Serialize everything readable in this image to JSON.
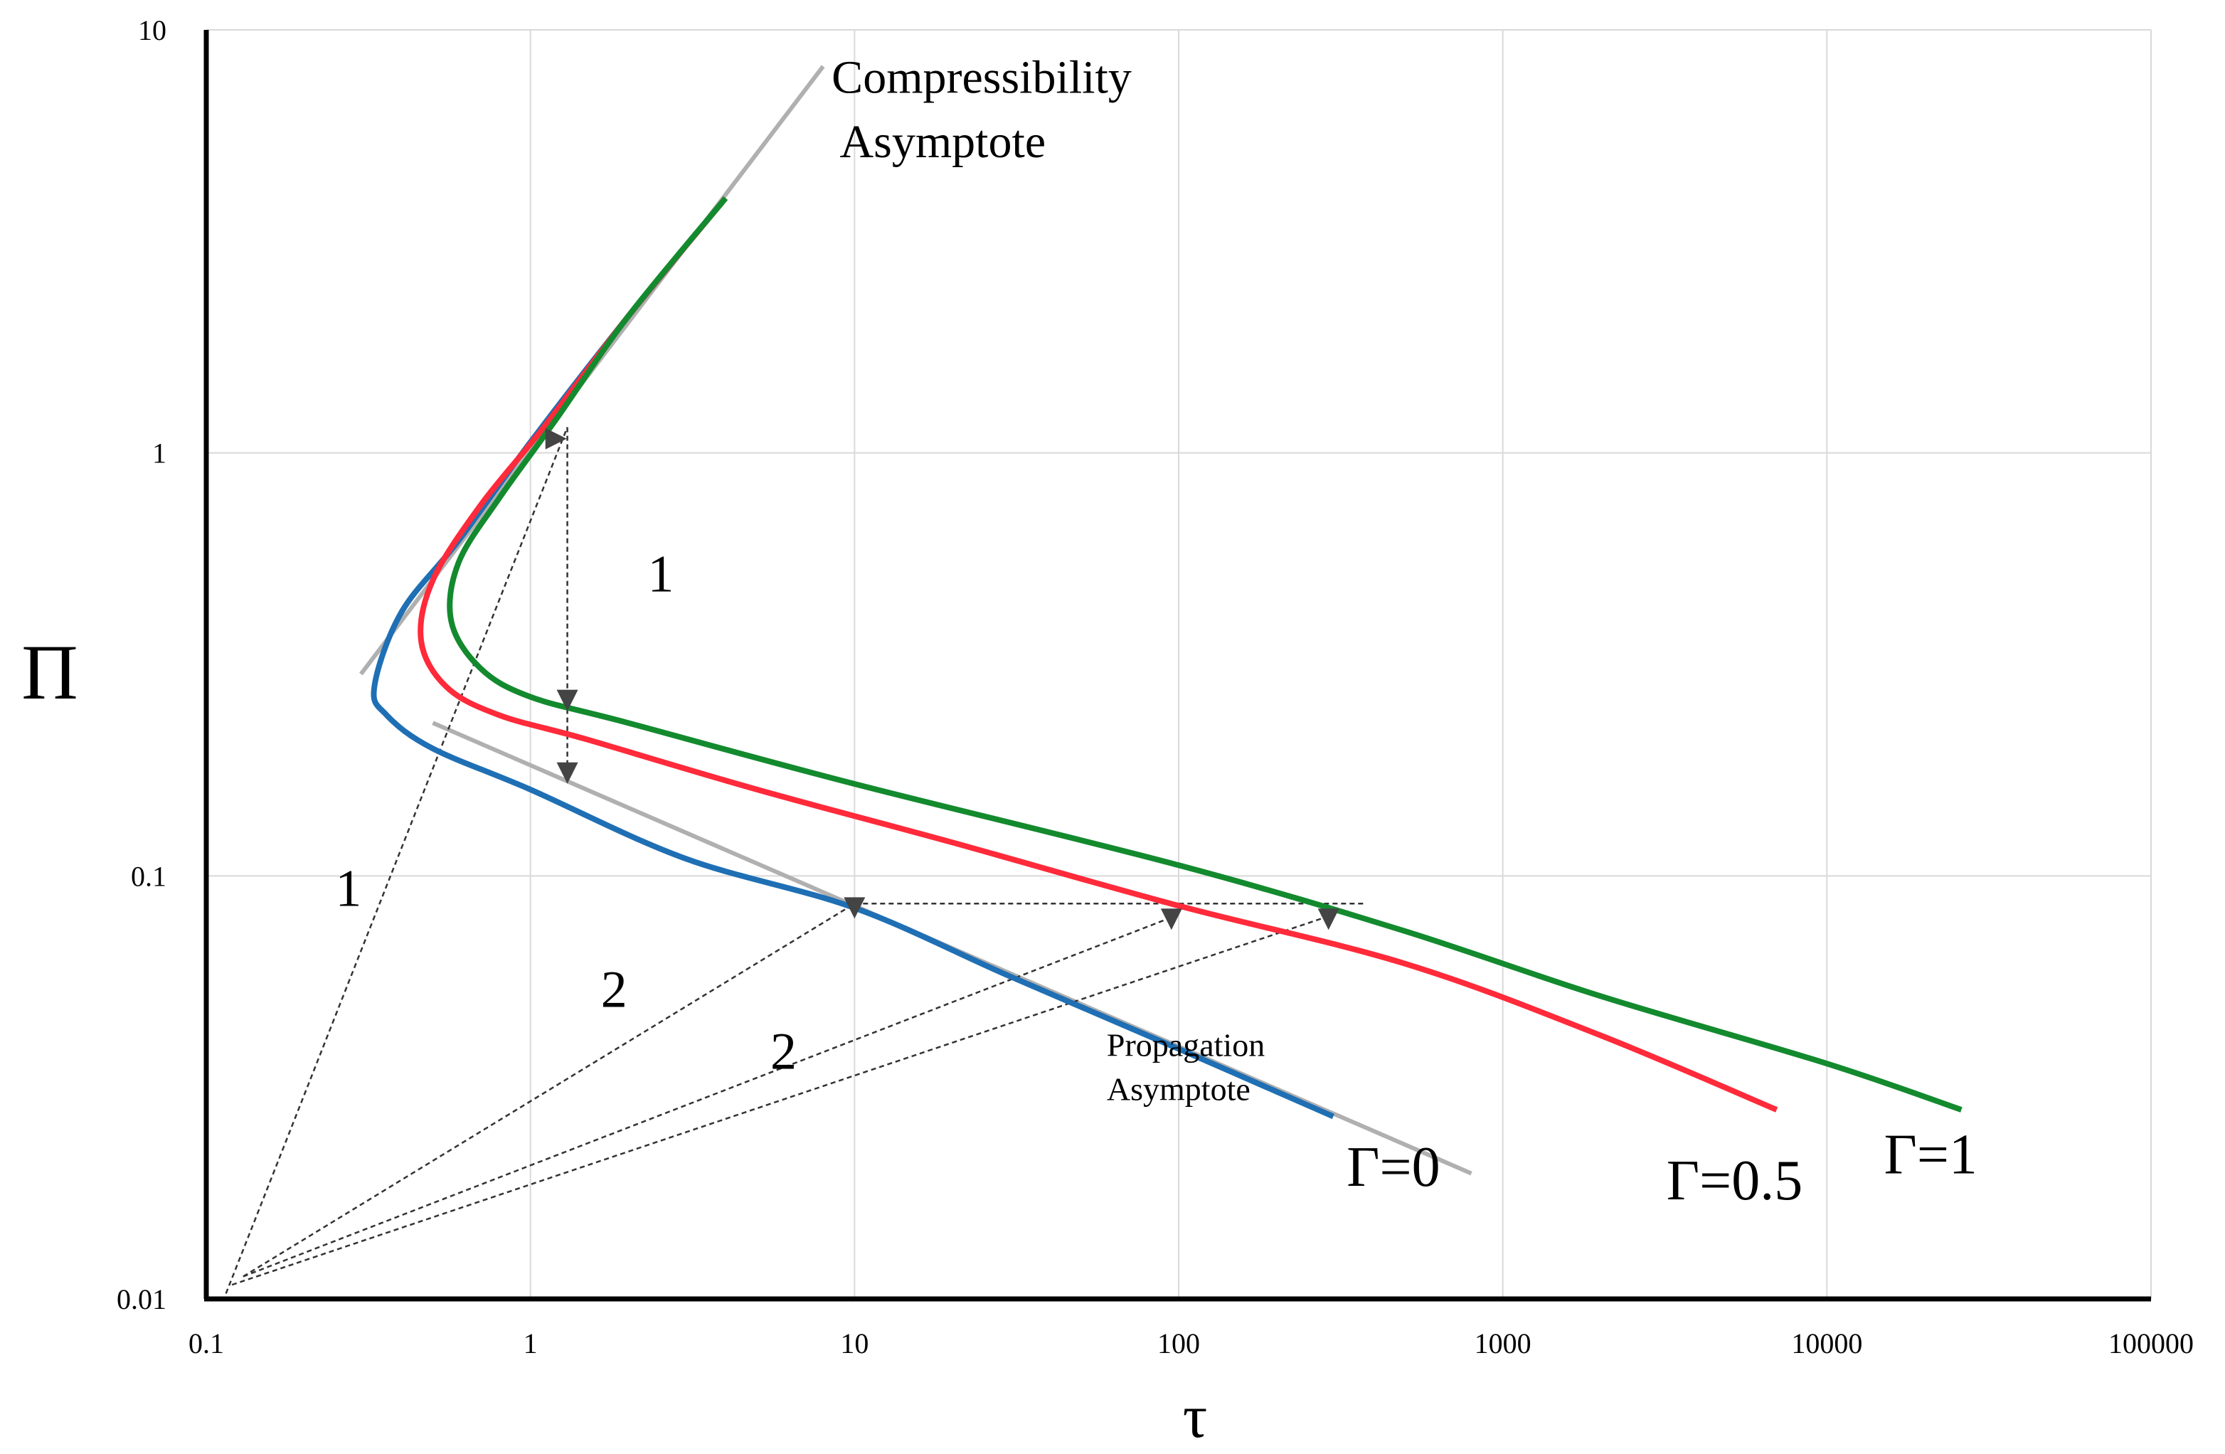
{
  "chart_data": {
    "type": "line",
    "xscale": "log",
    "yscale": "log",
    "xlim": [
      0.1,
      100000
    ],
    "ylim": [
      0.01,
      10
    ],
    "xlabel": "τ",
    "ylabel": "Π",
    "x_ticks": [
      "0.1",
      "1",
      "10",
      "100",
      "1000",
      "10000",
      "100000"
    ],
    "y_ticks": [
      "0.01",
      "0.1",
      "1",
      "10"
    ],
    "grid": true,
    "colors": {
      "gamma0": "#1f6fb4",
      "gamma05": "#ff2a3a",
      "gamma1": "#138a2e",
      "asymptote": "#b0b0b0",
      "construction": "#333333"
    },
    "series": [
      {
        "name": "Γ=0",
        "color": "#1f6fb4",
        "x": [
          4,
          2,
          1,
          0.6,
          0.4,
          0.33,
          0.36,
          0.5,
          1,
          3,
          10,
          30,
          100,
          300
        ],
        "y": [
          4,
          2.1,
          1.06,
          0.62,
          0.42,
          0.28,
          0.24,
          0.2,
          0.16,
          0.11,
          0.084,
          0.058,
          0.039,
          0.027
        ]
      },
      {
        "name": "Γ=0.5",
        "color": "#ff2a3a",
        "x": [
          4,
          2,
          1.1,
          0.7,
          0.5,
          0.46,
          0.55,
          0.8,
          1.5,
          5,
          20,
          100,
          500,
          2000,
          7000
        ],
        "y": [
          4,
          2.1,
          1.15,
          0.75,
          0.5,
          0.36,
          0.28,
          0.24,
          0.21,
          0.16,
          0.12,
          0.085,
          0.062,
          0.042,
          0.028
        ]
      },
      {
        "name": "Γ=1",
        "color": "#138a2e",
        "x": [
          4,
          2,
          1.2,
          0.8,
          0.6,
          0.57,
          0.7,
          1,
          2,
          10,
          100,
          500,
          2000,
          10000,
          26000
        ],
        "y": [
          4,
          2.1,
          1.2,
          0.78,
          0.55,
          0.4,
          0.31,
          0.265,
          0.23,
          0.165,
          0.106,
          0.074,
          0.052,
          0.036,
          0.028
        ]
      }
    ],
    "asymptotes": [
      {
        "name": "Compressibility Asymptote",
        "x": [
          0.3,
          8
        ],
        "y": [
          0.3,
          8.2
        ]
      },
      {
        "name": "Propagation Asymptote",
        "x": [
          0.5,
          800
        ],
        "y": [
          0.23,
          0.0198
        ]
      }
    ],
    "construction_lines": [
      {
        "x": [
          0.115,
          1.3
        ],
        "y": [
          0.0103,
          1.15
        ]
      },
      {
        "x": [
          1.3,
          1.3
        ],
        "y": [
          1.15,
          0.17
        ]
      },
      {
        "x": [
          0.13,
          10
        ],
        "y": [
          0.0113,
          0.086
        ]
      },
      {
        "x": [
          0.13,
          100
        ],
        "y": [
          0.0113,
          0.081
        ]
      },
      {
        "x": [
          0.12,
          300
        ],
        "y": [
          0.0108,
          0.081
        ]
      },
      {
        "x": [
          10,
          380
        ],
        "y": [
          0.086,
          0.086
        ]
      }
    ],
    "arrow_markers": [
      {
        "x": 1.2,
        "y": 1.08,
        "dir": "right"
      },
      {
        "x": 1.3,
        "y": 0.26,
        "dir": "down"
      },
      {
        "x": 1.3,
        "y": 0.175,
        "dir": "down"
      },
      {
        "x": 10,
        "y": 0.084,
        "dir": "down"
      },
      {
        "x": 95,
        "y": 0.079,
        "dir": "down"
      },
      {
        "x": 290,
        "y": 0.079,
        "dir": "down"
      }
    ],
    "annotations": [
      {
        "id": "compress1",
        "text": "Compressibility",
        "x": 8.5,
        "y": 7.1,
        "size": 66
      },
      {
        "id": "compress2",
        "text": "Asymptote",
        "x": 9.0,
        "y": 5.0,
        "size": 66
      },
      {
        "id": "slope1a",
        "text": "1",
        "x": 2.3,
        "y": 0.47,
        "size": 74
      },
      {
        "id": "slope1b",
        "text": "1",
        "x": 0.25,
        "y": 0.085,
        "size": 74
      },
      {
        "id": "slope2a",
        "text": "2",
        "x": 1.65,
        "y": 0.049,
        "size": 74
      },
      {
        "id": "slope2b",
        "text": "2",
        "x": 5.5,
        "y": 0.035,
        "size": 74
      },
      {
        "id": "prop1",
        "text": "Propagation",
        "x": 60,
        "y": 0.0375,
        "size": 46
      },
      {
        "id": "prop2",
        "text": "Asymptote",
        "x": 60,
        "y": 0.0295,
        "size": 46
      },
      {
        "id": "lab_g0",
        "text": "Γ=0",
        "x": 330,
        "y": 0.0185,
        "size": 80
      },
      {
        "id": "lab_g05",
        "text": "Γ=0.5",
        "x": 3200,
        "y": 0.0172,
        "size": 80
      },
      {
        "id": "lab_g1",
        "text": "Γ=1",
        "x": 15000,
        "y": 0.0198,
        "size": 80
      }
    ]
  }
}
